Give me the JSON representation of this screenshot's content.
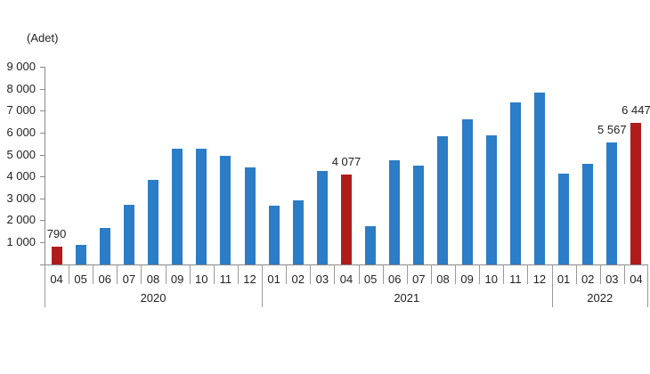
{
  "chart_data": {
    "type": "bar",
    "title": "",
    "unit_label": "(Adet)",
    "xlabel": "",
    "ylabel": "(Adet)",
    "ylim": [
      0,
      9000
    ],
    "yticks": [
      0,
      1000,
      2000,
      3000,
      4000,
      5000,
      6000,
      7000,
      8000,
      9000
    ],
    "ytick_labels": [
      "",
      "1 000",
      "2 000",
      "3 000",
      "4 000",
      "5 000",
      "6 000",
      "7 000",
      "8 000",
      "9 000"
    ],
    "grid": false,
    "legend": null,
    "categories": [
      "04",
      "05",
      "06",
      "07",
      "08",
      "09",
      "10",
      "11",
      "12",
      "01",
      "02",
      "03",
      "04",
      "05",
      "06",
      "07",
      "08",
      "09",
      "10",
      "11",
      "12",
      "01",
      "02",
      "03",
      "04"
    ],
    "years": [
      {
        "label": "2020",
        "start": 0,
        "count": 9
      },
      {
        "label": "2021",
        "start": 9,
        "count": 12
      },
      {
        "label": "2022",
        "start": 21,
        "count": 4
      }
    ],
    "values": [
      790,
      870,
      1670,
      2720,
      3860,
      5250,
      5250,
      4950,
      4400,
      2670,
      2920,
      4240,
      4077,
      1750,
      4740,
      4480,
      5850,
      6610,
      5880,
      7370,
      7810,
      4140,
      4580,
      5567,
      6447
    ],
    "highlighted": [
      0,
      12,
      24
    ],
    "data_labels": [
      {
        "index": 0,
        "text": "790"
      },
      {
        "index": 12,
        "text": "4 077"
      },
      {
        "index": 23,
        "text": "5 567"
      },
      {
        "index": 24,
        "text": "6 447"
      }
    ],
    "colors": {
      "bar": "#2A7DC6",
      "highlight": "#B01C1C",
      "axis": "#888888"
    }
  }
}
